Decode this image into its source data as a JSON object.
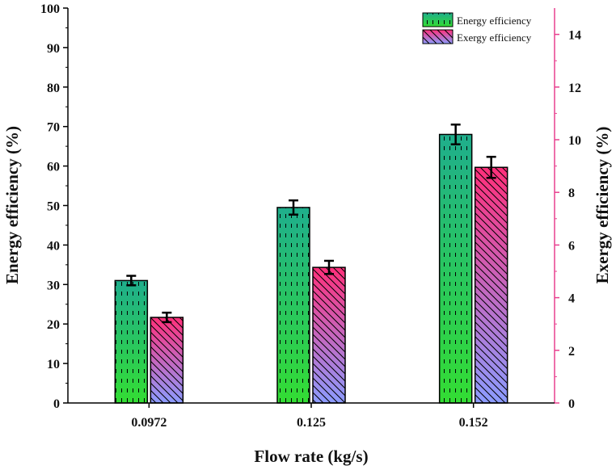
{
  "chart_data": {
    "type": "bar",
    "categories": [
      "0.0972",
      "0.125",
      "0.152"
    ],
    "xlabel": "Flow rate (kg/s)",
    "series": [
      {
        "name": "Energy efficiency",
        "axis": "left",
        "values": [
          31,
          49.5,
          68
        ],
        "errors": [
          1.2,
          1.8,
          2.5
        ],
        "color_top": "#1fae8c",
        "color_bottom": "#33dd33"
      },
      {
        "name": "Exergy efficiency",
        "axis": "right",
        "values": [
          3.25,
          5.15,
          8.95
        ],
        "errors": [
          0.18,
          0.25,
          0.4
        ],
        "color_top": "#ff2f7a",
        "color_bottom": "#8c9cff"
      }
    ],
    "y_left": {
      "label": "Energy efficiency (%)",
      "lim": [
        0,
        100
      ],
      "ticks": [
        "0",
        "10",
        "20",
        "30",
        "40",
        "50",
        "60",
        "70",
        "80",
        "90",
        "100"
      ]
    },
    "y_right": {
      "label": "Exergy efficiency (%)",
      "lim": [
        0,
        15
      ],
      "ticks": [
        "0",
        "2",
        "4",
        "6",
        "8",
        "10",
        "12",
        "14"
      ],
      "color": "#e8408f"
    },
    "legend_position": "top-right"
  }
}
